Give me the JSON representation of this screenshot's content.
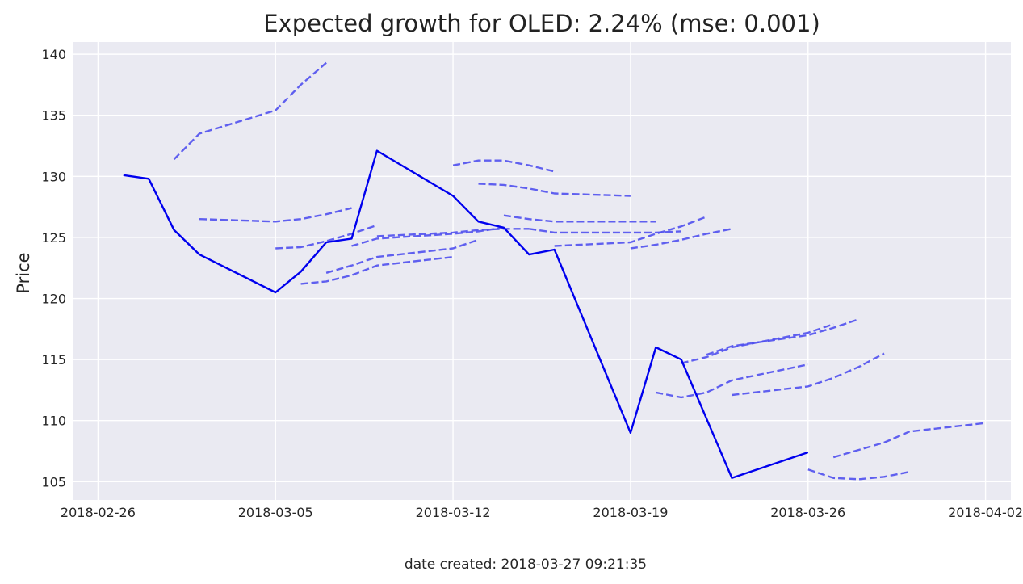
{
  "footer": "date created: 2018-03-27 09:21:35",
  "chart_data": {
    "type": "line",
    "title": "Expected growth for OLED: 2.24% (mse: 0.001)",
    "xlabel": "",
    "ylabel": "Price",
    "x_axis": "date",
    "xlim": [
      "2018-02-25",
      "2018-04-03"
    ],
    "ylim": [
      103.5,
      141
    ],
    "grid": true,
    "background": "#eaeaf2",
    "x_ticks": [
      "2018-02-26",
      "2018-03-05",
      "2018-03-12",
      "2018-03-19",
      "2018-03-26",
      "2018-04-02"
    ],
    "y_ticks": [
      105,
      110,
      115,
      120,
      125,
      130,
      135,
      140
    ],
    "actual": {
      "color": "#0000ee",
      "style": "solid",
      "points": [
        [
          "2018-02-27",
          130.1
        ],
        [
          "2018-02-28",
          129.8
        ],
        [
          "2018-03-01",
          125.6
        ],
        [
          "2018-03-02",
          123.6
        ],
        [
          "2018-03-05",
          120.5
        ],
        [
          "2018-03-06",
          122.2
        ],
        [
          "2018-03-07",
          124.6
        ],
        [
          "2018-03-08",
          124.9
        ],
        [
          "2018-03-09",
          132.1
        ],
        [
          "2018-03-12",
          128.4
        ],
        [
          "2018-03-13",
          126.3
        ],
        [
          "2018-03-14",
          125.8
        ],
        [
          "2018-03-15",
          123.6
        ],
        [
          "2018-03-16",
          124.0
        ],
        [
          "2018-03-19",
          109.0
        ],
        [
          "2018-03-20",
          116.0
        ],
        [
          "2018-03-21",
          115.0
        ],
        [
          "2018-03-23",
          105.3
        ],
        [
          "2018-03-26",
          107.4
        ]
      ]
    },
    "forecast_style": {
      "color": "#5050ee",
      "style": "dashed"
    },
    "forecasts": [
      [
        [
          "2018-03-01",
          131.4
        ],
        [
          "2018-03-02",
          133.5
        ],
        [
          "2018-03-05",
          135.4
        ],
        [
          "2018-03-06",
          137.5
        ],
        [
          "2018-03-07",
          139.3
        ]
      ],
      [
        [
          "2018-03-02",
          126.5
        ],
        [
          "2018-03-05",
          126.3
        ],
        [
          "2018-03-06",
          126.5
        ],
        [
          "2018-03-07",
          126.9
        ],
        [
          "2018-03-08",
          127.4
        ]
      ],
      [
        [
          "2018-03-05",
          124.1
        ],
        [
          "2018-03-06",
          124.2
        ],
        [
          "2018-03-07",
          124.7
        ],
        [
          "2018-03-08",
          125.3
        ],
        [
          "2018-03-09",
          126.0
        ]
      ],
      [
        [
          "2018-03-06",
          121.2
        ],
        [
          "2018-03-07",
          121.4
        ],
        [
          "2018-03-08",
          121.9
        ],
        [
          "2018-03-09",
          122.7
        ],
        [
          "2018-03-12",
          123.4
        ]
      ],
      [
        [
          "2018-03-07",
          122.1
        ],
        [
          "2018-03-08",
          122.7
        ],
        [
          "2018-03-09",
          123.4
        ],
        [
          "2018-03-12",
          124.1
        ],
        [
          "2018-03-13",
          124.8
        ]
      ],
      [
        [
          "2018-03-08",
          124.3
        ],
        [
          "2018-03-09",
          124.9
        ],
        [
          "2018-03-12",
          125.3
        ],
        [
          "2018-03-13",
          125.5
        ],
        [
          "2018-03-14",
          125.8
        ]
      ],
      [
        [
          "2018-03-09",
          125.1
        ],
        [
          "2018-03-12",
          125.4
        ],
        [
          "2018-03-13",
          125.6
        ],
        [
          "2018-03-14",
          125.7
        ],
        [
          "2018-03-15",
          125.7
        ]
      ],
      [
        [
          "2018-03-12",
          130.9
        ],
        [
          "2018-03-13",
          131.3
        ],
        [
          "2018-03-14",
          131.3
        ],
        [
          "2018-03-15",
          130.9
        ],
        [
          "2018-03-16",
          130.4
        ]
      ],
      [
        [
          "2018-03-13",
          129.4
        ],
        [
          "2018-03-14",
          129.3
        ],
        [
          "2018-03-15",
          129.0
        ],
        [
          "2018-03-16",
          128.6
        ],
        [
          "2018-03-19",
          128.4
        ]
      ],
      [
        [
          "2018-03-14",
          126.8
        ],
        [
          "2018-03-15",
          126.5
        ],
        [
          "2018-03-16",
          126.3
        ],
        [
          "2018-03-19",
          126.3
        ],
        [
          "2018-03-20",
          126.3
        ]
      ],
      [
        [
          "2018-03-15",
          125.7
        ],
        [
          "2018-03-16",
          125.4
        ],
        [
          "2018-03-19",
          125.4
        ],
        [
          "2018-03-20",
          125.4
        ],
        [
          "2018-03-21",
          125.5
        ]
      ],
      [
        [
          "2018-03-16",
          124.3
        ],
        [
          "2018-03-19",
          124.6
        ],
        [
          "2018-03-20",
          125.3
        ],
        [
          "2018-03-21",
          125.9
        ],
        [
          "2018-03-22",
          126.7
        ]
      ],
      [
        [
          "2018-03-19",
          124.1
        ],
        [
          "2018-03-20",
          124.4
        ],
        [
          "2018-03-21",
          124.8
        ],
        [
          "2018-03-22",
          125.3
        ],
        [
          "2018-03-23",
          125.7
        ]
      ],
      [
        [
          "2018-03-20",
          112.3
        ],
        [
          "2018-03-21",
          111.9
        ],
        [
          "2018-03-22",
          112.3
        ],
        [
          "2018-03-23",
          113.3
        ],
        [
          "2018-03-26",
          114.6
        ]
      ],
      [
        [
          "2018-03-21",
          114.7
        ],
        [
          "2018-03-22",
          115.2
        ],
        [
          "2018-03-23",
          116.0
        ],
        [
          "2018-03-26",
          117.2
        ],
        [
          "2018-03-27",
          117.9
        ]
      ],
      [
        [
          "2018-03-22",
          115.4
        ],
        [
          "2018-03-23",
          116.1
        ],
        [
          "2018-03-26",
          117.0
        ],
        [
          "2018-03-27",
          117.6
        ],
        [
          "2018-03-28",
          118.3
        ]
      ],
      [
        [
          "2018-03-23",
          112.1
        ],
        [
          "2018-03-26",
          112.8
        ],
        [
          "2018-03-27",
          113.5
        ],
        [
          "2018-03-28",
          114.4
        ],
        [
          "2018-03-29",
          115.5
        ]
      ],
      [
        [
          "2018-03-26",
          106.0
        ],
        [
          "2018-03-27",
          105.3
        ],
        [
          "2018-03-28",
          105.2
        ],
        [
          "2018-03-29",
          105.4
        ],
        [
          "2018-03-30",
          105.8
        ]
      ],
      [
        [
          "2018-03-27",
          107.0
        ],
        [
          "2018-03-28",
          107.6
        ],
        [
          "2018-03-29",
          108.2
        ],
        [
          "2018-03-30",
          109.1
        ],
        [
          "2018-04-02",
          109.8
        ]
      ]
    ]
  }
}
